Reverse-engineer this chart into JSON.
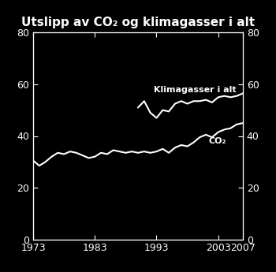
{
  "title": "Utslipp av CO₂ og klimagasser i alt",
  "background_color": "#000000",
  "text_color": "#ffffff",
  "line_color": "#ffffff",
  "xlim": [
    1973,
    2007
  ],
  "ylim": [
    0,
    80
  ],
  "xticks": [
    1973,
    1983,
    1993,
    2003,
    2007
  ],
  "yticks": [
    0,
    20,
    40,
    60,
    80
  ],
  "label_co2": "CO₂",
  "label_klima": "Klimagasser i alt",
  "years_co2": [
    1973,
    1974,
    1975,
    1976,
    1977,
    1978,
    1979,
    1980,
    1981,
    1982,
    1983,
    1984,
    1985,
    1986,
    1987,
    1988,
    1989,
    1990,
    1991,
    1992,
    1993,
    1994,
    1995,
    1996,
    1997,
    1998,
    1999,
    2000,
    2001,
    2002,
    2003,
    2004,
    2005,
    2006,
    2007
  ],
  "values_co2": [
    30.5,
    28.5,
    30.0,
    32.0,
    33.5,
    33.0,
    34.0,
    33.5,
    32.5,
    31.5,
    32.0,
    33.5,
    33.0,
    34.5,
    34.0,
    33.5,
    34.0,
    33.5,
    34.0,
    33.5,
    34.0,
    35.0,
    33.5,
    35.5,
    36.5,
    36.0,
    37.5,
    39.5,
    40.5,
    39.5,
    41.5,
    42.5,
    43.0,
    44.5,
    45.0
  ],
  "years_klima": [
    1990,
    1991,
    1992,
    1993,
    1994,
    1995,
    1996,
    1997,
    1998,
    1999,
    2000,
    2001,
    2002,
    2003,
    2004,
    2005,
    2006,
    2007
  ],
  "values_klima": [
    51.0,
    53.5,
    49.0,
    47.0,
    50.0,
    49.5,
    52.5,
    53.5,
    52.5,
    53.5,
    53.5,
    54.0,
    53.0,
    55.0,
    55.5,
    55.0,
    55.5,
    56.5
  ],
  "title_fontsize": 11,
  "tick_fontsize": 9,
  "label_fontsize": 8,
  "line_width": 1.5
}
